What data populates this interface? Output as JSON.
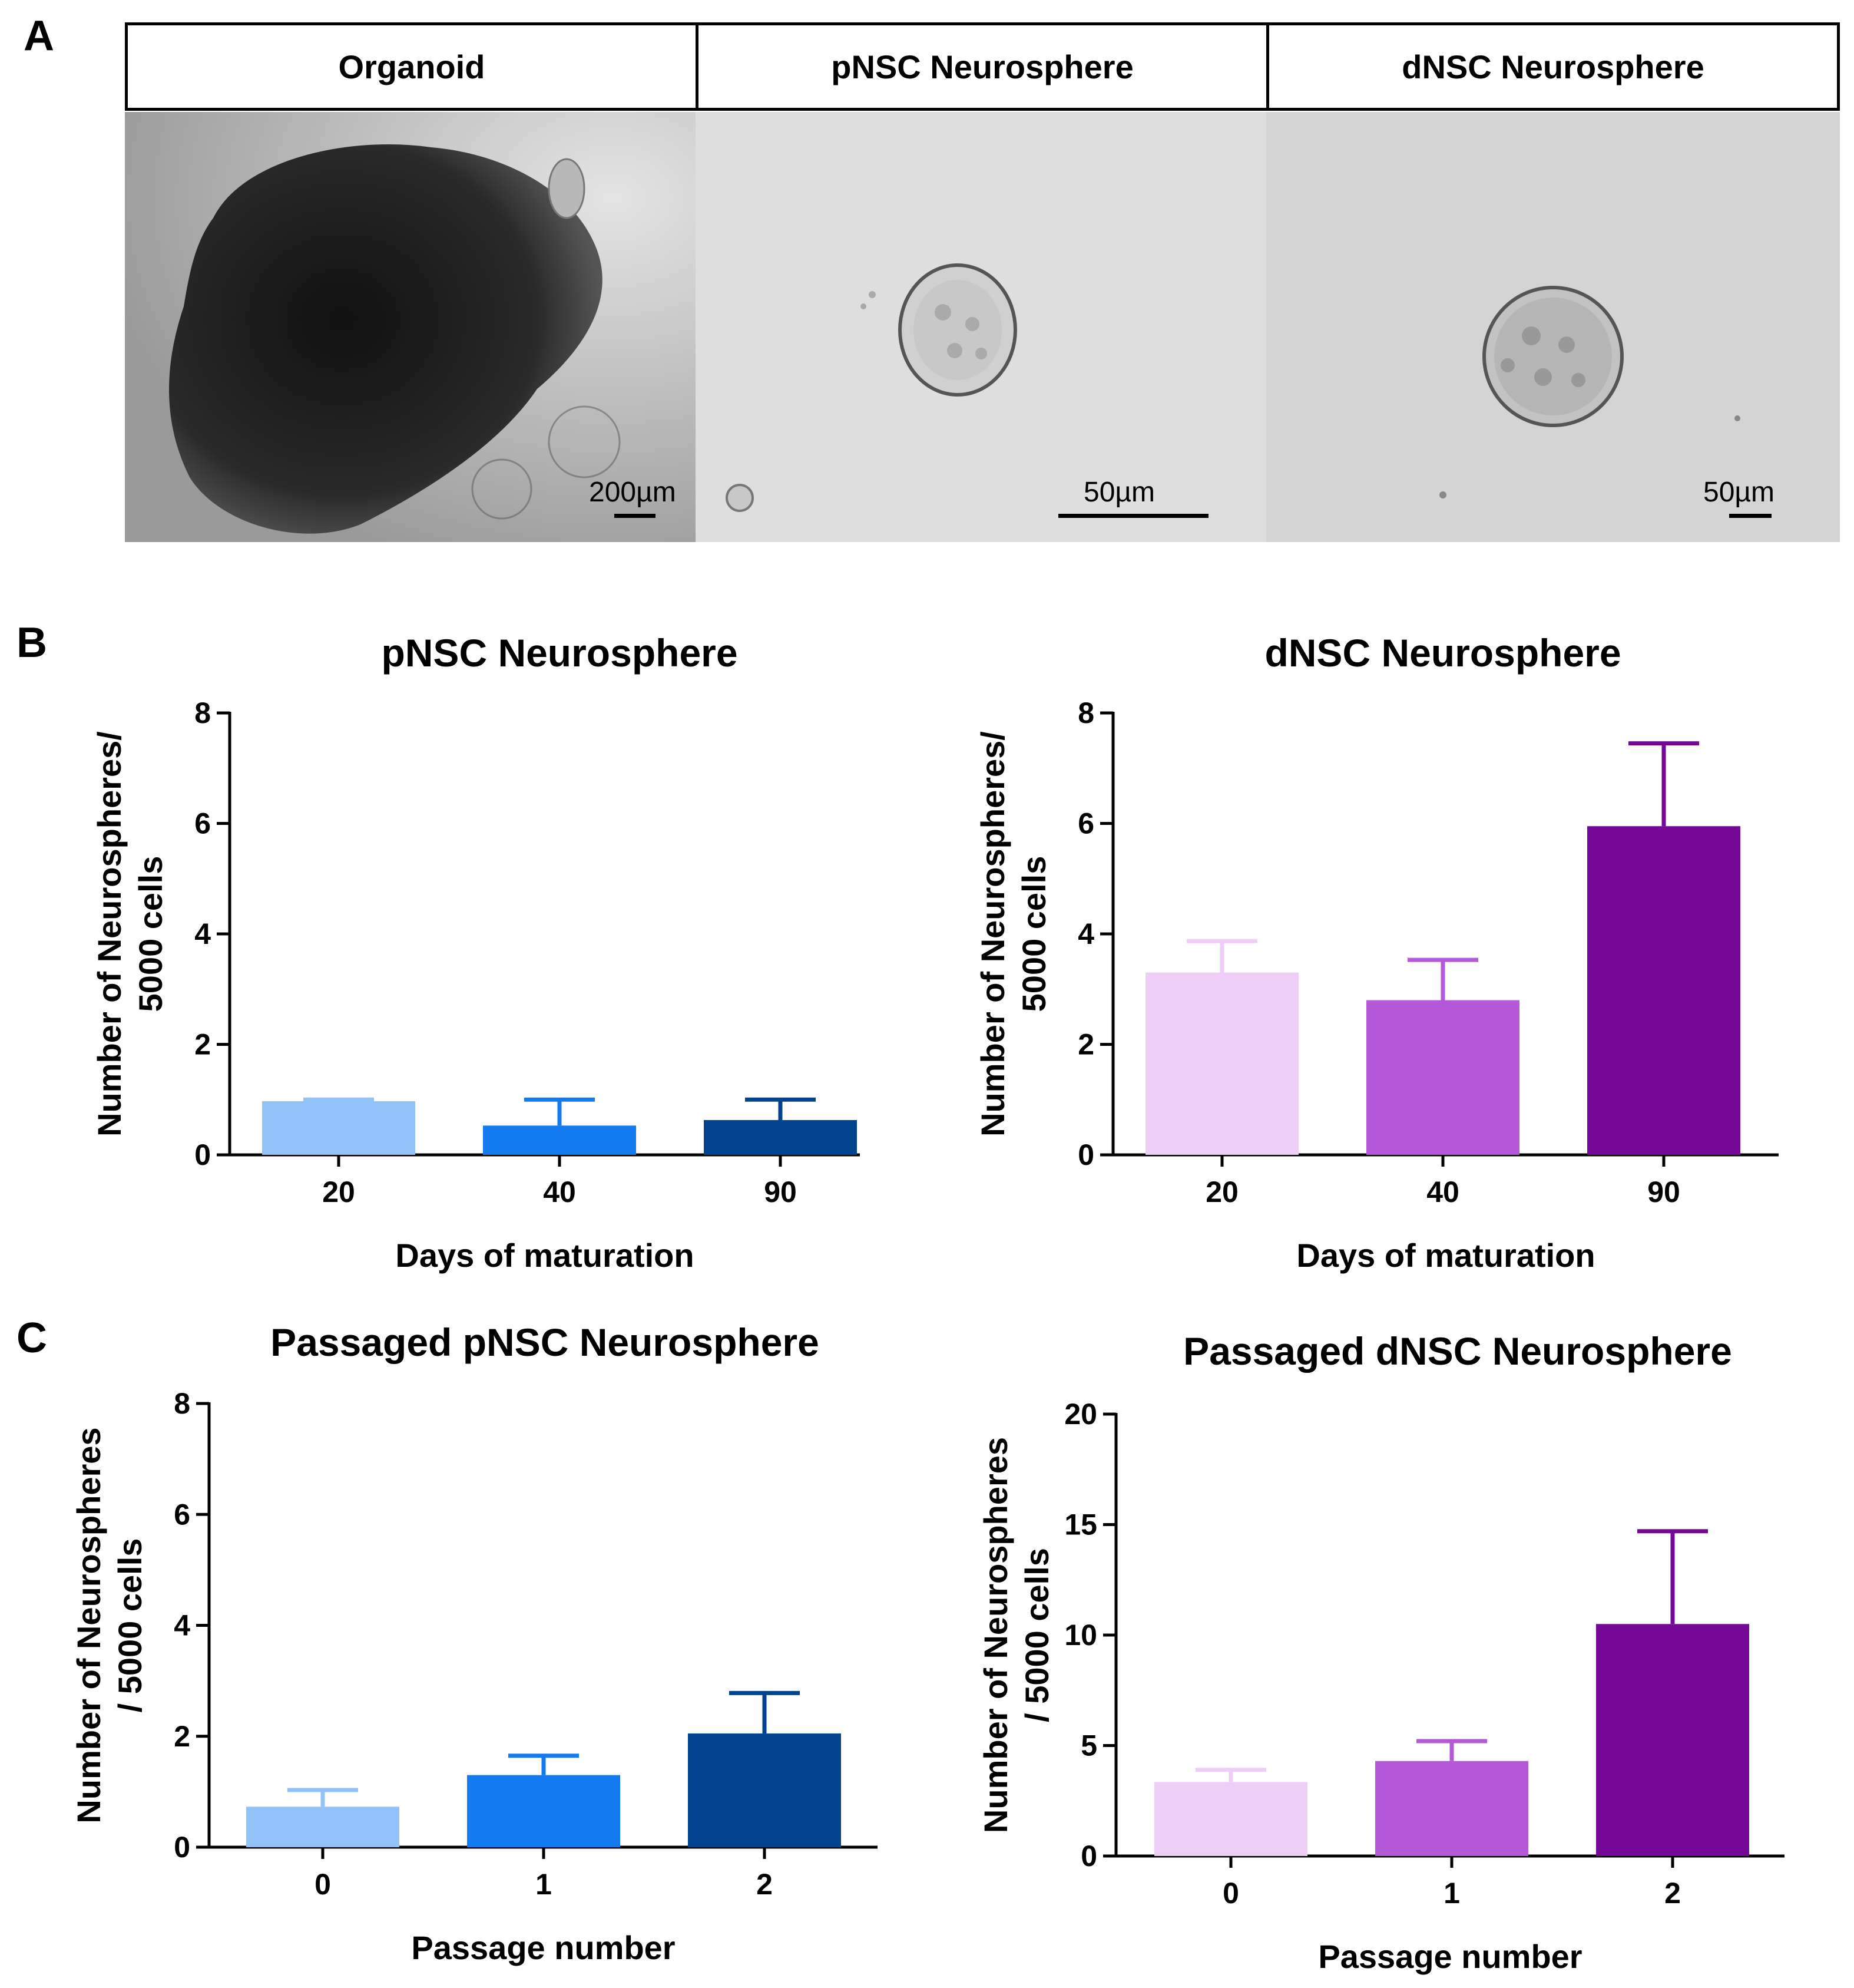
{
  "panels": {
    "a": "A",
    "b": "B",
    "c": "C"
  },
  "micrographs": [
    {
      "header": "Organoid",
      "scale": "200µm"
    },
    {
      "header": "pNSC Neurosphere",
      "scale": "50µm"
    },
    {
      "header": "dNSC Neurosphere",
      "scale": "50µm"
    }
  ],
  "chart_data": [
    {
      "id": "b-left",
      "type": "bar",
      "title": "pNSC Neurosphere",
      "categories": [
        "20",
        "40",
        "90"
      ],
      "values": [
        0.97,
        0.53,
        0.63
      ],
      "errors": [
        0.03,
        0.47,
        0.37
      ],
      "colors": [
        "#92c1f7",
        "#137bef",
        "#004490"
      ],
      "xlabel": "Days of maturation",
      "ylabel": [
        "Number of Neurospheres/",
        "5000 cells"
      ],
      "ylim": [
        0,
        8
      ],
      "yticks": [
        "0",
        "2",
        "4",
        "6",
        "8"
      ]
    },
    {
      "id": "b-right",
      "type": "bar",
      "title": "dNSC Neurosphere",
      "categories": [
        "20",
        "40",
        "90"
      ],
      "values": [
        3.3,
        2.8,
        5.95
      ],
      "errors": [
        0.57,
        0.73,
        1.5
      ],
      "colors": [
        "#eecdf6",
        "#b558d8",
        "#750896"
      ],
      "xlabel": "Days of maturation",
      "ylabel": [
        "Number of Neurospheres/",
        "5000 cells"
      ],
      "ylim": [
        0,
        8
      ],
      "yticks": [
        "0",
        "2",
        "4",
        "6",
        "8"
      ]
    },
    {
      "id": "c-left",
      "type": "bar",
      "title": "Passaged pNSC Neurosphere",
      "categories": [
        "0",
        "1",
        "2"
      ],
      "values": [
        0.73,
        1.3,
        2.05
      ],
      "errors": [
        0.3,
        0.35,
        0.73
      ],
      "colors": [
        "#92c1f7",
        "#137bef",
        "#004490"
      ],
      "xlabel": "Passage number",
      "ylabel": [
        "Number of Neurospheres",
        "/ 5000 cells"
      ],
      "ylim": [
        0,
        8
      ],
      "yticks": [
        "0",
        "2",
        "4",
        "6",
        "8"
      ]
    },
    {
      "id": "c-right",
      "type": "bar",
      "title": "Passaged dNSC Neurosphere",
      "categories": [
        "0",
        "1",
        "2"
      ],
      "values": [
        3.35,
        4.3,
        10.5
      ],
      "errors": [
        0.55,
        0.9,
        4.2
      ],
      "colors": [
        "#eecdf6",
        "#b558d8",
        "#750896"
      ],
      "xlabel": "Passage number",
      "ylabel": [
        "Number of Neurospheres",
        "/ 5000 cells"
      ],
      "ylim": [
        0,
        20
      ],
      "yticks": [
        "0",
        "5",
        "10",
        "15",
        "20"
      ]
    }
  ]
}
